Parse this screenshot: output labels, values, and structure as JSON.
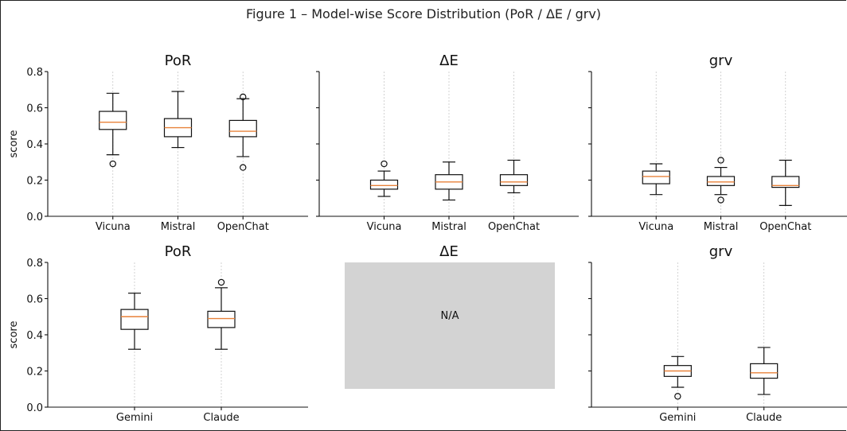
{
  "figure_title": "Figure 1 – Model-wise Score Distribution (PoR / ΔE / grv)",
  "colors": {
    "median": "#e8823a",
    "box": "#111111",
    "na_fill": "#d3d3d3",
    "grid": "#c8c8c8"
  },
  "chart_data": [
    {
      "type": "box",
      "title": "PoR",
      "ylabel": "score",
      "ylim": [
        0,
        0.8
      ],
      "yticks": [
        "0.0",
        "0.2",
        "0.4",
        "0.6",
        "0.8"
      ],
      "categories": [
        "Vicuna",
        "Mistral",
        "OpenChat"
      ],
      "boxes": [
        {
          "whisker_low": 0.34,
          "q1": 0.48,
          "median": 0.52,
          "q3": 0.58,
          "whisker_high": 0.68,
          "outliers": [
            0.29
          ]
        },
        {
          "whisker_low": 0.38,
          "q1": 0.44,
          "median": 0.49,
          "q3": 0.54,
          "whisker_high": 0.69,
          "outliers": []
        },
        {
          "whisker_low": 0.33,
          "q1": 0.44,
          "median": 0.47,
          "q3": 0.53,
          "whisker_high": 0.65,
          "outliers": [
            0.27,
            0.66
          ]
        }
      ]
    },
    {
      "type": "box",
      "title": "ΔE",
      "ylim": [
        0,
        0.8
      ],
      "categories": [
        "Vicuna",
        "Mistral",
        "OpenChat"
      ],
      "boxes": [
        {
          "whisker_low": 0.11,
          "q1": 0.15,
          "median": 0.17,
          "q3": 0.2,
          "whisker_high": 0.25,
          "outliers": [
            0.29
          ]
        },
        {
          "whisker_low": 0.09,
          "q1": 0.15,
          "median": 0.19,
          "q3": 0.23,
          "whisker_high": 0.3,
          "outliers": []
        },
        {
          "whisker_low": 0.13,
          "q1": 0.17,
          "median": 0.19,
          "q3": 0.23,
          "whisker_high": 0.31,
          "outliers": []
        }
      ]
    },
    {
      "type": "box",
      "title": "grv",
      "ylim": [
        0,
        0.8
      ],
      "categories": [
        "Vicuna",
        "Mistral",
        "OpenChat"
      ],
      "boxes": [
        {
          "whisker_low": 0.12,
          "q1": 0.18,
          "median": 0.22,
          "q3": 0.25,
          "whisker_high": 0.29,
          "outliers": []
        },
        {
          "whisker_low": 0.12,
          "q1": 0.17,
          "median": 0.19,
          "q3": 0.22,
          "whisker_high": 0.27,
          "outliers": [
            0.09,
            0.31
          ]
        },
        {
          "whisker_low": 0.06,
          "q1": 0.16,
          "median": 0.17,
          "q3": 0.22,
          "whisker_high": 0.31,
          "outliers": []
        }
      ]
    },
    {
      "type": "box",
      "title": "PoR",
      "ylabel": "score",
      "ylim": [
        0,
        0.8
      ],
      "yticks": [
        "0.0",
        "0.2",
        "0.4",
        "0.6",
        "0.8"
      ],
      "categories": [
        "Gemini",
        "Claude"
      ],
      "boxes": [
        {
          "whisker_low": 0.32,
          "q1": 0.43,
          "median": 0.5,
          "q3": 0.54,
          "whisker_high": 0.63,
          "outliers": []
        },
        {
          "whisker_low": 0.32,
          "q1": 0.44,
          "median": 0.49,
          "q3": 0.53,
          "whisker_high": 0.66,
          "outliers": [
            0.69
          ]
        }
      ]
    },
    {
      "type": "placeholder",
      "title": "ΔE",
      "text": "N/A"
    },
    {
      "type": "box",
      "title": "grv",
      "ylim": [
        0,
        0.8
      ],
      "categories": [
        "Gemini",
        "Claude"
      ],
      "boxes": [
        {
          "whisker_low": 0.11,
          "q1": 0.17,
          "median": 0.2,
          "q3": 0.23,
          "whisker_high": 0.28,
          "outliers": [
            0.06
          ]
        },
        {
          "whisker_low": 0.07,
          "q1": 0.16,
          "median": 0.19,
          "q3": 0.24,
          "whisker_high": 0.33,
          "outliers": []
        }
      ]
    }
  ]
}
